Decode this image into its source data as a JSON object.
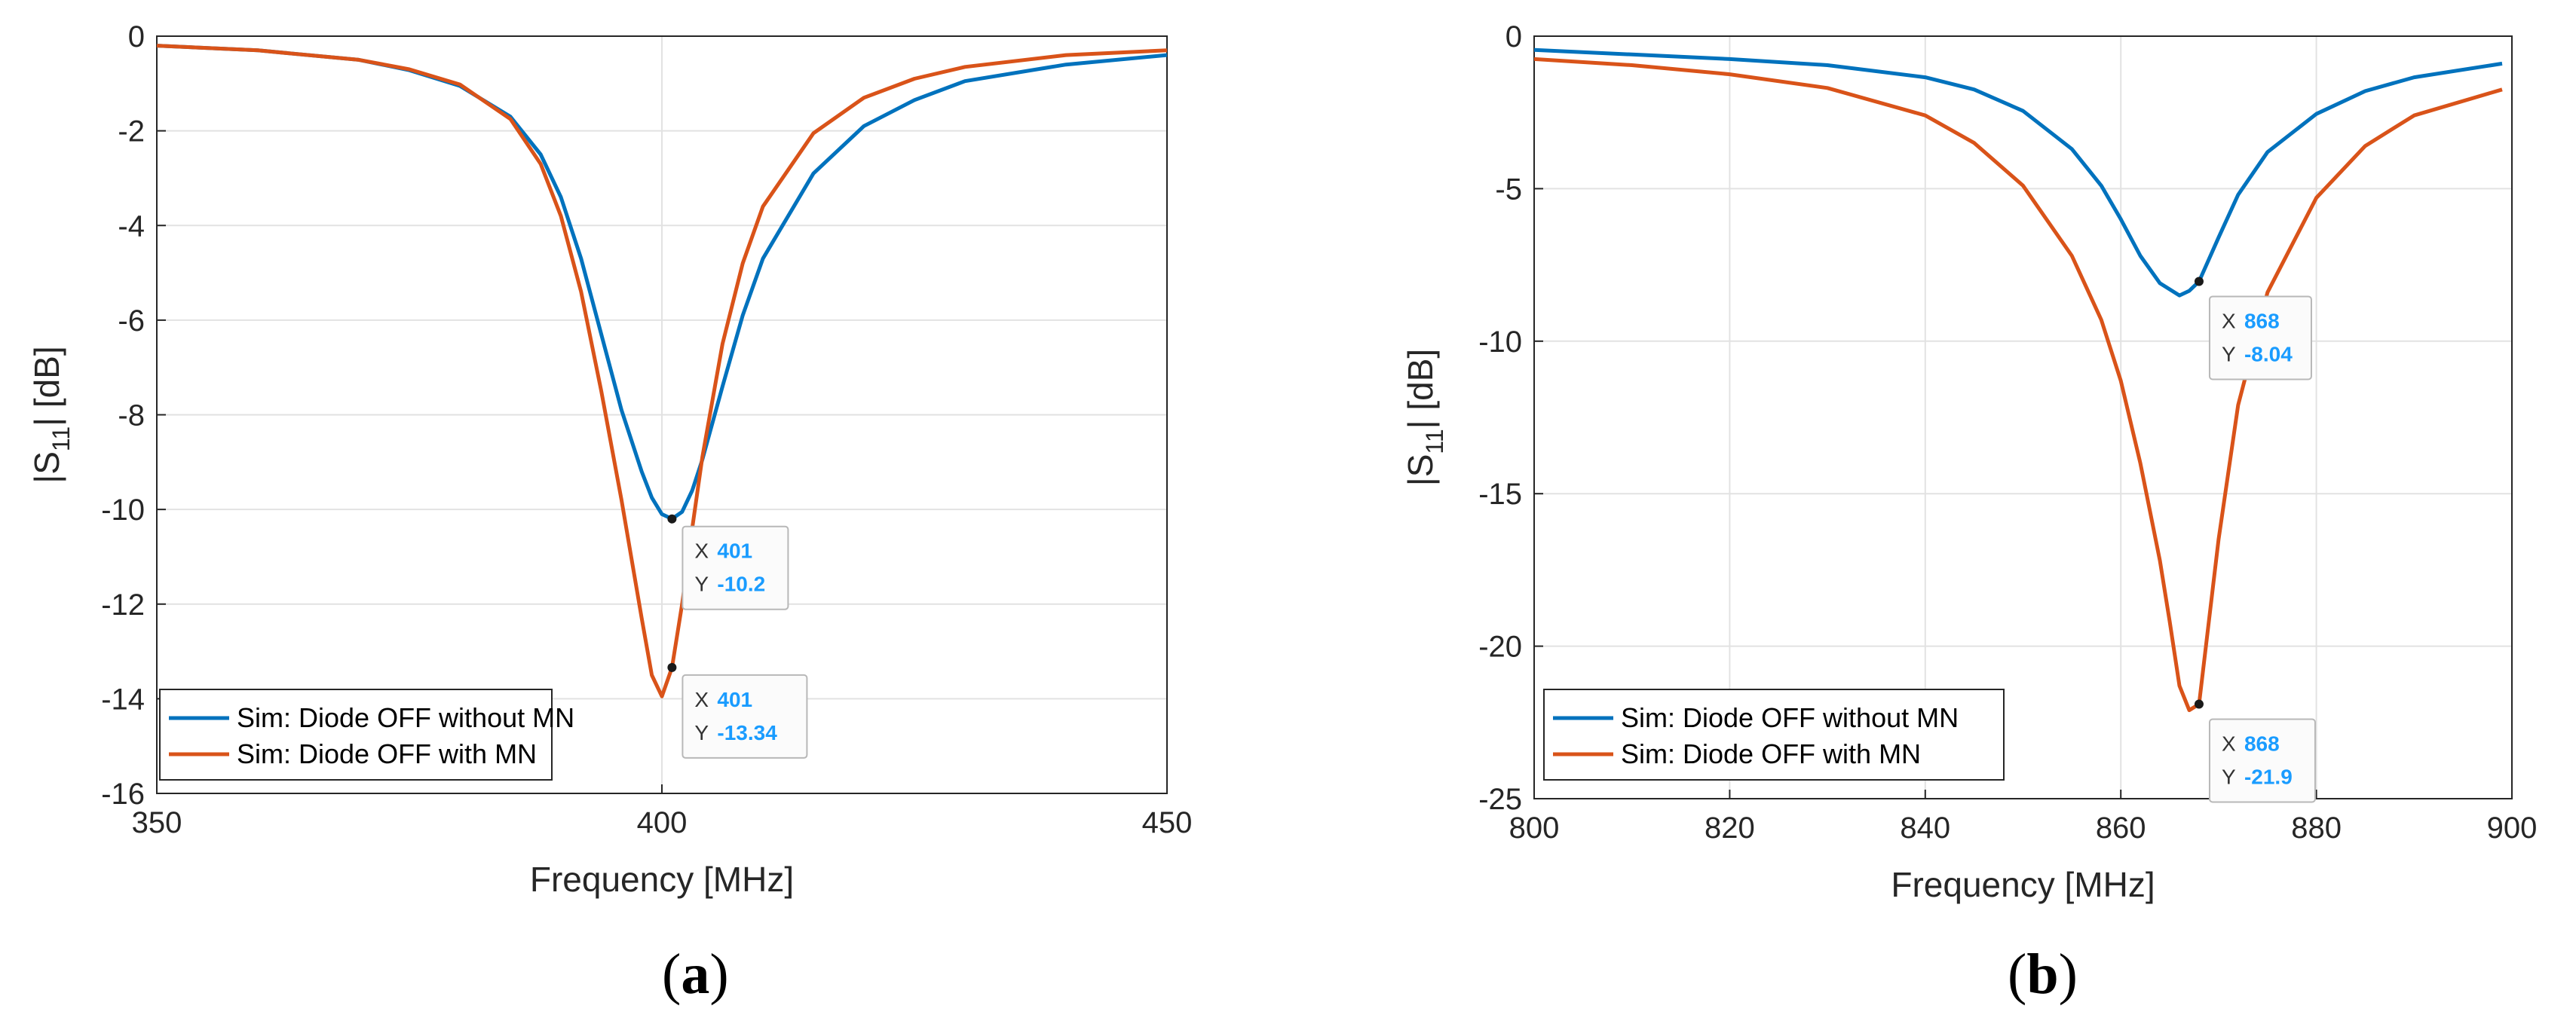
{
  "colors": {
    "series1": "#0072bd",
    "series2": "#d95319",
    "grid": "#e2e2e2",
    "datatip_value": "#1a9cff"
  },
  "chart_data": [
    {
      "type": "line",
      "panel_label": "a",
      "xlabel": "Frequency [MHz]",
      "ylabel": "|S11| [dB]",
      "ylabel_main": "|S",
      "ylabel_sub": "11",
      "ylabel_rest": "| [dB]",
      "xlim": [
        350,
        450
      ],
      "ylim": [
        -16,
        0
      ],
      "xticks": [
        350,
        400,
        450
      ],
      "xtick_labels": [
        "350",
        "400",
        "450"
      ],
      "yticks": [
        0,
        -2,
        -4,
        -6,
        -8,
        -10,
        -12,
        -14,
        -16
      ],
      "ytick_labels": [
        "0",
        "-2",
        "-4",
        "-6",
        "-8",
        "-10",
        "-12",
        "-14",
        "-16"
      ],
      "grid": true,
      "legend_position": "bottom-left",
      "series": [
        {
          "name": "Sim: Diode OFF without MN",
          "color": "#0072bd",
          "x": [
            350,
            360,
            370,
            375,
            380,
            385,
            388,
            390,
            392,
            394,
            396,
            398,
            399,
            400,
            401,
            402,
            403,
            404,
            406,
            408,
            410,
            415,
            420,
            425,
            430,
            440,
            450
          ],
          "y": [
            -0.2,
            -0.3,
            -0.5,
            -0.72,
            -1.05,
            -1.7,
            -2.5,
            -3.4,
            -4.7,
            -6.3,
            -7.9,
            -9.2,
            -9.75,
            -10.1,
            -10.2,
            -10.05,
            -9.6,
            -8.95,
            -7.4,
            -5.9,
            -4.7,
            -2.9,
            -1.9,
            -1.35,
            -0.95,
            -0.6,
            -0.4
          ]
        },
        {
          "name": "Sim: Diode OFF with MN",
          "color": "#d95319",
          "x": [
            350,
            360,
            370,
            375,
            380,
            385,
            388,
            390,
            392,
            394,
            396,
            398,
            399,
            400,
            401,
            402,
            403,
            404,
            406,
            408,
            410,
            415,
            420,
            425,
            430,
            440,
            450
          ],
          "y": [
            -0.2,
            -0.3,
            -0.5,
            -0.7,
            -1.02,
            -1.75,
            -2.7,
            -3.8,
            -5.4,
            -7.5,
            -9.8,
            -12.3,
            -13.5,
            -13.95,
            -13.34,
            -12.0,
            -10.4,
            -8.9,
            -6.5,
            -4.8,
            -3.6,
            -2.05,
            -1.3,
            -0.9,
            -0.65,
            -0.4,
            -0.3
          ]
        }
      ],
      "datatips": [
        {
          "x_label": "X",
          "x_value": "401",
          "y_label": "Y",
          "y_value": "-10.2",
          "x": 401,
          "y": -10.2
        },
        {
          "x_label": "X",
          "x_value": "401",
          "y_label": "Y",
          "y_value": "-13.34",
          "x": 401,
          "y": -13.34
        }
      ]
    },
    {
      "type": "line",
      "panel_label": "b",
      "xlabel": "Frequency [MHz]",
      "ylabel": "|S11| [dB]",
      "ylabel_main": "|S",
      "ylabel_sub": "11",
      "ylabel_rest": "| [dB]",
      "xlim": [
        800,
        900
      ],
      "ylim": [
        -25,
        0
      ],
      "xticks": [
        800,
        820,
        840,
        860,
        880,
        900
      ],
      "xtick_labels": [
        "800",
        "820",
        "840",
        "860",
        "880",
        "900"
      ],
      "yticks": [
        0,
        -5,
        -10,
        -15,
        -20,
        -25
      ],
      "ytick_labels": [
        "0",
        "-5",
        "-10",
        "-15",
        "-20",
        "-25"
      ],
      "grid": true,
      "legend_position": "bottom-left",
      "series": [
        {
          "name": "Sim: Diode OFF without MN",
          "color": "#0072bd",
          "x": [
            800,
            810,
            820,
            830,
            840,
            845,
            850,
            855,
            858,
            860,
            862,
            864,
            866,
            867,
            868,
            870,
            872,
            875,
            880,
            885,
            890,
            899
          ],
          "y": [
            -0.45,
            -0.6,
            -0.75,
            -0.95,
            -1.35,
            -1.75,
            -2.45,
            -3.7,
            -4.9,
            -6.0,
            -7.2,
            -8.1,
            -8.5,
            -8.35,
            -8.04,
            -6.6,
            -5.2,
            -3.8,
            -2.55,
            -1.8,
            -1.35,
            -0.9
          ]
        },
        {
          "name": "Sim: Diode OFF with MN",
          "color": "#d95319",
          "x": [
            800,
            810,
            820,
            830,
            840,
            845,
            850,
            855,
            858,
            860,
            862,
            864,
            865,
            866,
            867,
            868,
            870,
            872,
            875,
            880,
            885,
            890,
            899
          ],
          "y": [
            -0.75,
            -0.95,
            -1.25,
            -1.7,
            -2.6,
            -3.5,
            -4.9,
            -7.2,
            -9.3,
            -11.3,
            -14.0,
            -17.2,
            -19.2,
            -21.3,
            -22.1,
            -21.9,
            -16.5,
            -12.1,
            -8.4,
            -5.3,
            -3.6,
            -2.6,
            -1.75
          ]
        }
      ],
      "datatips": [
        {
          "x_label": "X",
          "x_value": "868",
          "y_label": "Y",
          "y_value": "-8.04",
          "x": 868,
          "y": -8.04
        },
        {
          "x_label": "X",
          "x_value": "868",
          "y_label": "Y",
          "y_value": "-21.9",
          "x": 868,
          "y": -21.9
        }
      ]
    }
  ]
}
